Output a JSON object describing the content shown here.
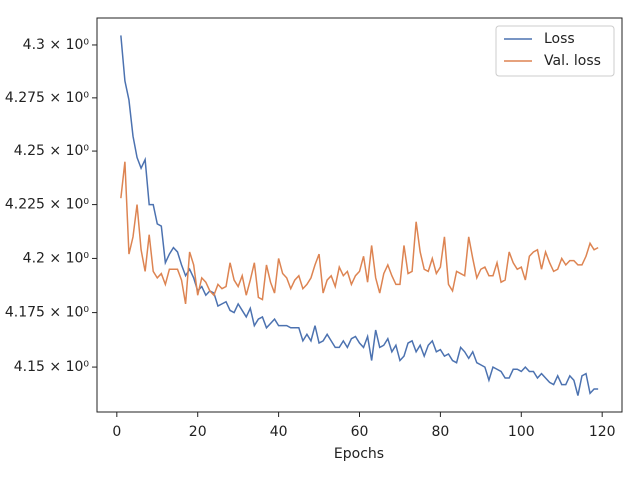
{
  "chart_data": {
    "type": "line",
    "xlabel": "Epochs",
    "x": [
      1,
      2,
      3,
      4,
      5,
      6,
      7,
      8,
      9,
      10,
      11,
      12,
      13,
      14,
      15,
      16,
      17,
      18,
      19,
      20,
      21,
      22,
      23,
      24,
      25,
      26,
      27,
      28,
      29,
      30,
      31,
      32,
      33,
      34,
      35,
      36,
      37,
      38,
      39,
      40,
      41,
      42,
      43,
      44,
      45,
      46,
      47,
      48,
      49,
      50,
      51,
      52,
      53,
      54,
      55,
      56,
      57,
      58,
      59,
      60,
      61,
      62,
      63,
      64,
      65,
      66,
      67,
      68,
      69,
      70,
      71,
      72,
      73,
      74,
      75,
      76,
      77,
      78,
      79,
      80,
      81,
      82,
      83,
      84,
      85,
      86,
      87,
      88,
      89,
      90,
      91,
      92,
      93,
      94,
      95,
      96,
      97,
      98,
      99,
      100,
      101,
      102,
      103,
      104,
      105,
      106,
      107,
      108,
      109,
      110,
      111,
      112,
      113,
      114,
      115,
      116,
      117,
      118,
      119
    ],
    "series": [
      {
        "name": "Loss",
        "color": "#4c72b0",
        "values": [
          4.3045,
          4.283,
          4.274,
          4.257,
          4.247,
          4.242,
          4.246,
          4.225,
          4.225,
          4.216,
          4.215,
          4.198,
          4.202,
          4.205,
          4.203,
          4.197,
          4.192,
          4.195,
          4.191,
          4.185,
          4.187,
          4.183,
          4.185,
          4.184,
          4.178,
          4.179,
          4.18,
          4.176,
          4.175,
          4.179,
          4.176,
          4.173,
          4.177,
          4.169,
          4.172,
          4.173,
          4.168,
          4.17,
          4.172,
          4.169,
          4.169,
          4.169,
          4.168,
          4.168,
          4.168,
          4.162,
          4.165,
          4.162,
          4.169,
          4.161,
          4.162,
          4.165,
          4.162,
          4.159,
          4.159,
          4.162,
          4.159,
          4.163,
          4.164,
          4.161,
          4.159,
          4.164,
          4.153,
          4.167,
          4.159,
          4.16,
          4.163,
          4.157,
          4.16,
          4.153,
          4.155,
          4.161,
          4.162,
          4.157,
          4.16,
          4.155,
          4.16,
          4.162,
          4.157,
          4.158,
          4.155,
          4.156,
          4.153,
          4.152,
          4.159,
          4.157,
          4.154,
          4.157,
          4.152,
          4.151,
          4.15,
          4.144,
          4.15,
          4.149,
          4.148,
          4.145,
          4.145,
          4.149,
          4.149,
          4.148,
          4.15,
          4.148,
          4.148,
          4.145,
          4.147,
          4.145,
          4.143,
          4.142,
          4.146,
          4.142,
          4.142,
          4.146,
          4.144,
          4.137,
          4.146,
          4.147,
          4.138,
          4.14,
          4.14
        ]
      },
      {
        "name": "Val. loss",
        "color": "#dd8452",
        "values": [
          4.228,
          4.245,
          4.202,
          4.21,
          4.225,
          4.204,
          4.194,
          4.211,
          4.194,
          4.191,
          4.193,
          4.188,
          4.195,
          4.195,
          4.195,
          4.19,
          4.179,
          4.203,
          4.197,
          4.183,
          4.191,
          4.189,
          4.185,
          4.183,
          4.188,
          4.186,
          4.187,
          4.198,
          4.19,
          4.187,
          4.192,
          4.183,
          4.19,
          4.198,
          4.182,
          4.181,
          4.197,
          4.189,
          4.184,
          4.2,
          4.193,
          4.191,
          4.186,
          4.19,
          4.192,
          4.186,
          4.188,
          4.191,
          4.197,
          4.202,
          4.184,
          4.19,
          4.192,
          4.187,
          4.196,
          4.192,
          4.194,
          4.188,
          4.192,
          4.194,
          4.201,
          4.189,
          4.206,
          4.191,
          4.184,
          4.193,
          4.197,
          4.192,
          4.188,
          4.188,
          4.206,
          4.193,
          4.194,
          4.217,
          4.203,
          4.195,
          4.194,
          4.2,
          4.193,
          4.196,
          4.21,
          4.188,
          4.185,
          4.194,
          4.193,
          4.192,
          4.21,
          4.2,
          4.191,
          4.195,
          4.196,
          4.192,
          4.192,
          4.198,
          4.189,
          4.19,
          4.203,
          4.198,
          4.195,
          4.196,
          4.19,
          4.201,
          4.203,
          4.204,
          4.195,
          4.203,
          4.198,
          4.194,
          4.195,
          4.2,
          4.197,
          4.199,
          4.199,
          4.197,
          4.197,
          4.201,
          4.207,
          4.204,
          4.205
        ]
      }
    ],
    "xlim": [
      -4.9,
      124.9
    ],
    "xticks": [
      0,
      20,
      40,
      60,
      80,
      100,
      120
    ],
    "ylim": [
      4.1295,
      4.3128
    ],
    "yscale": "log",
    "yticks": [
      {
        "value": 4.15,
        "label": "4.15 × 10⁰"
      },
      {
        "value": 4.175,
        "label": "4.175 × 10⁰"
      },
      {
        "value": 4.2,
        "label": "4.2 × 10⁰"
      },
      {
        "value": 4.225,
        "label": "4.225 × 10⁰"
      },
      {
        "value": 4.25,
        "label": "4.25 × 10⁰"
      },
      {
        "value": 4.275,
        "label": "4.275 × 10⁰"
      },
      {
        "value": 4.3,
        "label": "4.3 × 10⁰"
      }
    ],
    "legend": "upper right"
  }
}
